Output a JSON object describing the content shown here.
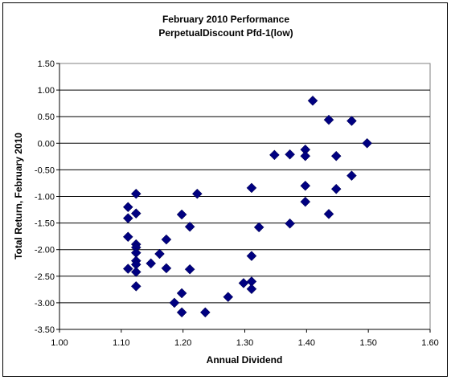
{
  "chart_data": {
    "type": "scatter",
    "title": "February 2010 Performance",
    "subtitle": "PerpetualDiscount Pfd-1(low)",
    "xlabel": "Annual Dividend",
    "ylabel": "Total Return, February 2010",
    "xlim": [
      1.0,
      1.6
    ],
    "ylim": [
      -3.5,
      1.5
    ],
    "xticks": [
      "1.00",
      "1.10",
      "1.20",
      "1.30",
      "1.40",
      "1.50",
      "1.60"
    ],
    "yticks": [
      "1.50",
      "1.00",
      "0.50",
      "0.00",
      "-0.50",
      "-1.00",
      "-1.50",
      "-2.00",
      "-2.50",
      "-3.00",
      "-3.50"
    ],
    "grid": "horizontal",
    "legend": "none",
    "marker_color": "#000080",
    "points": [
      [
        1.111,
        -1.2
      ],
      [
        1.111,
        -1.41
      ],
      [
        1.111,
        -1.76
      ],
      [
        1.111,
        -2.36
      ],
      [
        1.124,
        -0.95
      ],
      [
        1.124,
        -1.32
      ],
      [
        1.124,
        -1.9
      ],
      [
        1.124,
        -1.96
      ],
      [
        1.124,
        -2.06
      ],
      [
        1.124,
        -2.21
      ],
      [
        1.124,
        -2.28
      ],
      [
        1.124,
        -2.42
      ],
      [
        1.124,
        -2.69
      ],
      [
        1.148,
        -2.26
      ],
      [
        1.162,
        -2.08
      ],
      [
        1.173,
        -1.81
      ],
      [
        1.173,
        -2.35
      ],
      [
        1.186,
        -3.0
      ],
      [
        1.198,
        -1.34
      ],
      [
        1.198,
        -2.82
      ],
      [
        1.198,
        -3.18
      ],
      [
        1.211,
        -1.57
      ],
      [
        1.211,
        -2.37
      ],
      [
        1.223,
        -0.95
      ],
      [
        1.236,
        -3.18
      ],
      [
        1.273,
        -2.89
      ],
      [
        1.298,
        -2.63
      ],
      [
        1.311,
        -0.84
      ],
      [
        1.311,
        -2.12
      ],
      [
        1.311,
        -2.6
      ],
      [
        1.311,
        -2.74
      ],
      [
        1.323,
        -1.58
      ],
      [
        1.348,
        -0.22
      ],
      [
        1.373,
        -0.21
      ],
      [
        1.373,
        -1.51
      ],
      [
        1.398,
        -0.12
      ],
      [
        1.398,
        -0.24
      ],
      [
        1.398,
        -0.8
      ],
      [
        1.398,
        -1.1
      ],
      [
        1.41,
        0.8
      ],
      [
        1.436,
        0.44
      ],
      [
        1.436,
        -1.33
      ],
      [
        1.448,
        -0.24
      ],
      [
        1.448,
        -0.86
      ],
      [
        1.473,
        0.42
      ],
      [
        1.473,
        -0.61
      ],
      [
        1.498,
        0.0
      ]
    ]
  }
}
